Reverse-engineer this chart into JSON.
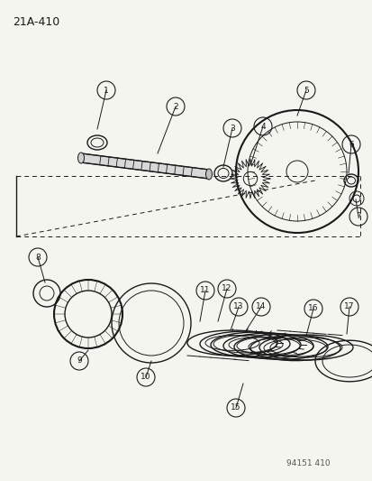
{
  "title": "21A-410",
  "watermark": "94151 410",
  "bg_color": "#f5f5f0",
  "line_color": "#1a1a1a",
  "label_color": "#1a1a1a",
  "fig_w": 4.14,
  "fig_h": 5.33,
  "dpi": 100
}
